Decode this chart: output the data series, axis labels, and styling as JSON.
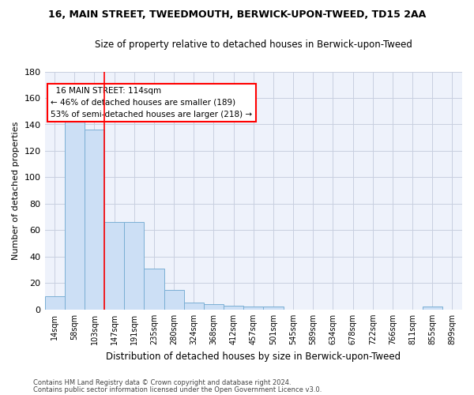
{
  "title": "16, MAIN STREET, TWEEDMOUTH, BERWICK-UPON-TWEED, TD15 2AA",
  "subtitle": "Size of property relative to detached houses in Berwick-upon-Tweed",
  "xlabel": "Distribution of detached houses by size in Berwick-upon-Tweed",
  "ylabel": "Number of detached properties",
  "bar_color": "#ccdff5",
  "bar_edge_color": "#7aafd4",
  "background_color": "#eef2fb",
  "grid_color": "#c8cfe0",
  "categories": [
    "14sqm",
    "58sqm",
    "103sqm",
    "147sqm",
    "191sqm",
    "235sqm",
    "280sqm",
    "324sqm",
    "368sqm",
    "412sqm",
    "457sqm",
    "501sqm",
    "545sqm",
    "589sqm",
    "634sqm",
    "678sqm",
    "722sqm",
    "766sqm",
    "811sqm",
    "855sqm",
    "899sqm"
  ],
  "values": [
    10,
    143,
    136,
    66,
    66,
    31,
    15,
    5,
    4,
    3,
    2,
    2,
    0,
    0,
    0,
    0,
    0,
    0,
    0,
    2,
    0
  ],
  "ylim": [
    0,
    180
  ],
  "yticks": [
    0,
    20,
    40,
    60,
    80,
    100,
    120,
    140,
    160,
    180
  ],
  "pct_smaller_detached": 46,
  "n_smaller_detached": 189,
  "pct_larger_semidetached": 53,
  "n_larger_semidetached": 218,
  "vline_x": 2.5,
  "footer1": "Contains HM Land Registry data © Crown copyright and database right 2024.",
  "footer2": "Contains public sector information licensed under the Open Government Licence v3.0."
}
